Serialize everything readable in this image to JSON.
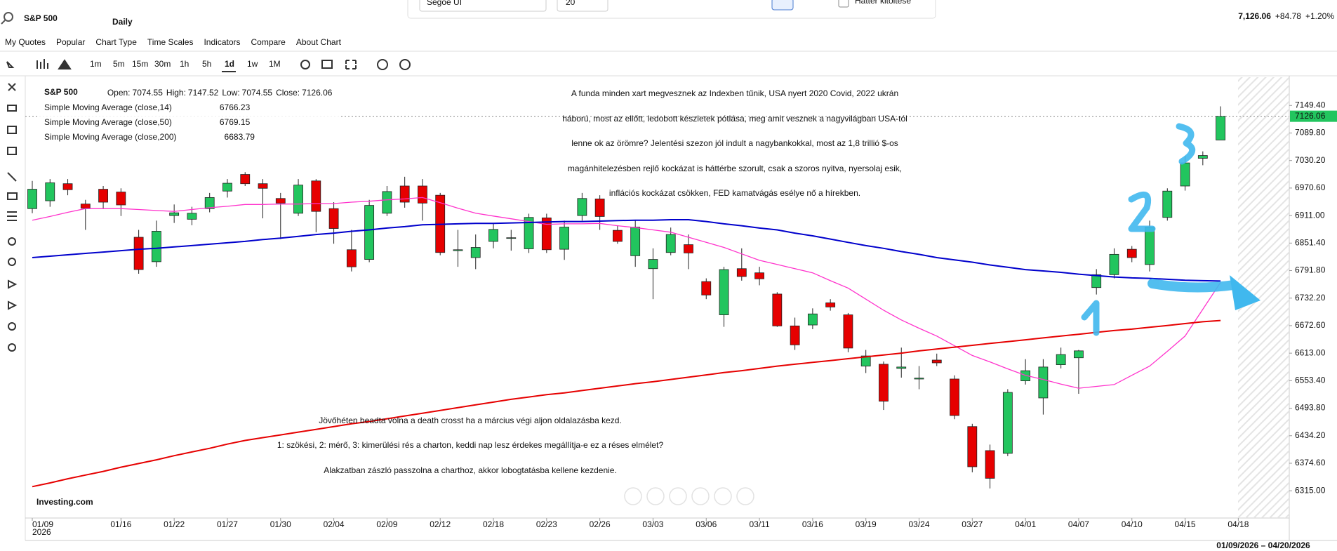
{
  "header": {
    "symbol": "S&P 500",
    "interval": "Daily",
    "price": "7,126.06",
    "change": "+84.78",
    "change_pct": "+1.20%"
  },
  "text_toolbar": {
    "font": "Segoe UI",
    "size": "20",
    "fill_label": "Háttér kitöltése"
  },
  "menu": [
    "My Quotes",
    "Popular",
    "Chart Type",
    "Time Scales",
    "Indicators",
    "Compare",
    "About Chart"
  ],
  "toolbar": {
    "intervals": [
      "1m",
      "5m",
      "15m",
      "30m",
      "1h",
      "5h",
      "1d",
      "1w",
      "1M"
    ]
  },
  "chart_data": {
    "type": "candlestick",
    "title": "S&P 500",
    "ohlc_labels": [
      "Open:",
      "High:",
      "Low:",
      "Close:"
    ],
    "categories": [
      "01/09",
      null,
      null,
      null,
      null,
      "01/16",
      null,
      null,
      "01/22",
      null,
      null,
      "01/27",
      null,
      null,
      "01/30",
      null,
      null,
      "02/04",
      null,
      null,
      "02/09",
      null,
      null,
      "02/12",
      null,
      null,
      "02/18",
      null,
      null,
      "02/23",
      null,
      null,
      "02/26",
      null,
      null,
      "03/03",
      null,
      null,
      "03/06",
      null,
      null,
      "03/11",
      null,
      null,
      "03/16",
      null,
      null,
      "03/19",
      null,
      null,
      "03/24",
      null,
      null,
      "03/27",
      null,
      null,
      "04/01",
      null,
      null,
      "04/07",
      null,
      null,
      "04/10",
      null,
      null,
      "04/15",
      null,
      null,
      "04/18"
    ],
    "year_label": "2026",
    "open": [
      6926,
      6943,
      6980,
      6936,
      6968,
      6962,
      6864,
      6811,
      6911,
      6903,
      6926,
      6964,
      7000,
      6980,
      6948,
      6916,
      6986,
      6926,
      6837,
      6816,
      6916,
      6975,
      6975,
      6955,
      6835,
      6820,
      6855,
      6862,
      6839,
      6906,
      6838,
      6911,
      6947,
      6879,
      6824,
      6796,
      6831,
      6848,
      6768,
      6696,
      6796,
      6787,
      6741,
      6672,
      6674,
      6722,
      6696,
      6585,
      6589,
      6580,
      6557,
      6598,
      6557,
      6454,
      6402,
      6396,
      6553,
      6516,
      6588,
      6603,
      6755,
      6783,
      6838,
      6805,
      6907,
      6975,
      7035,
      7074.55,
      null
    ],
    "high": [
      6986,
      6990,
      6990,
      6945,
      6975,
      6970,
      6880,
      6900,
      6935,
      6930,
      6960,
      6990,
      7005,
      6990,
      6960,
      6990,
      6990,
      6940,
      6880,
      6945,
      6975,
      6995,
      6990,
      6960,
      6880,
      6870,
      6895,
      6880,
      6915,
      6915,
      6900,
      6960,
      6955,
      6890,
      6900,
      6840,
      6885,
      6870,
      6775,
      6800,
      6840,
      6800,
      6745,
      6690,
      6710,
      6730,
      6700,
      6620,
      6595,
      6625,
      6585,
      6612,
      6565,
      6460,
      6415,
      6535,
      6600,
      6600,
      6625,
      6620,
      6795,
      6840,
      6845,
      6900,
      6970,
      7040,
      7050,
      7147.52,
      null
    ],
    "low": [
      6916,
      6930,
      6955,
      6880,
      6925,
      6910,
      6785,
      6800,
      6895,
      6890,
      6918,
      6950,
      6975,
      6905,
      6860,
      6910,
      6875,
      6850,
      6790,
      6810,
      6910,
      6928,
      6900,
      6825,
      6800,
      6795,
      6840,
      6835,
      6830,
      6830,
      6815,
      6900,
      6880,
      6850,
      6800,
      6730,
      6825,
      6795,
      6730,
      6670,
      6770,
      6760,
      6670,
      6620,
      6665,
      6705,
      6615,
      6570,
      6490,
      6560,
      6535,
      6585,
      6470,
      6355,
      6320,
      6390,
      6545,
      6480,
      6580,
      6525,
      6740,
      6775,
      6810,
      6790,
      6900,
      6965,
      7020,
      7074.55,
      null
    ],
    "close": [
      6968,
      6982,
      6967,
      6927,
      6940,
      6934,
      6794,
      6877,
      6917,
      6916,
      6950,
      6981,
      6980,
      6970,
      6938,
      6977,
      6920,
      6883,
      6800,
      6933,
      6963,
      6940,
      6938,
      6831,
      6837,
      6842,
      6881,
      6863,
      6907,
      6837,
      6886,
      6948,
      6909,
      6855,
      6886,
      6816,
      6870,
      6830,
      6739,
      6794,
      6779,
      6774,
      6672,
      6631,
      6698,
      6713,
      6624,
      6607,
      6509,
      6583,
      6559,
      6592,
      6478,
      6367,
      6342,
      6528,
      6575,
      6583,
      6610,
      6618,
      6783,
      6827,
      6820,
      6886,
      6964,
      7025,
      7041,
      7126.06,
      null
    ],
    "up_color": "#22c55e",
    "down_color": "#e60000",
    "series": [
      {
        "name": "Simple Moving Average (close,14)",
        "color": "#ff33cc",
        "values": [
          6901,
          6909,
          6918,
          6926,
          6926,
          6926,
          6924,
          6922,
          6920,
          6924,
          6928,
          6931,
          6935,
          6935,
          6936,
          6936,
          6937,
          6937,
          6940,
          6942,
          6945,
          6947,
          6950,
          6939,
          6927,
          6916,
          6910,
          6904,
          6898,
          6892,
          6893,
          6893,
          6894,
          6889,
          6885,
          6880,
          6875,
          6864,
          6853,
          6842,
          6828,
          6814,
          6805,
          6796,
          6787,
          6770,
          6754,
          6730,
          6706,
          6685,
          6667,
          6650,
          6629,
          6608,
          6594,
          6579,
          6565,
          6556,
          6546,
          6537,
          6541,
          6545,
          6565,
          6585,
          6617,
          6650,
          6708,
          6766.23,
          null
        ]
      },
      {
        "name": "Simple Moving Average (close,50)",
        "color": "#0000cc",
        "values": [
          6820,
          6823,
          6826,
          6829,
          6832,
          6835,
          6838,
          6840,
          6843,
          6846,
          6849,
          6852,
          6855,
          6859,
          6862,
          6866,
          6870,
          6873,
          6877,
          6880,
          6884,
          6887,
          6891,
          6892,
          6893,
          6894,
          6894,
          6895,
          6896,
          6897,
          6898,
          6898,
          6899,
          6900,
          6901,
          6901,
          6902,
          6902,
          6898,
          6893,
          6889,
          6884,
          6880,
          6873,
          6867,
          6860,
          6853,
          6846,
          6840,
          6833,
          6827,
          6820,
          6815,
          6810,
          6804,
          6799,
          6794,
          6791,
          6788,
          6784,
          6781,
          6778,
          6776,
          6775,
          6773,
          6771,
          6770,
          6769.15,
          null
        ]
      },
      {
        "name": "Simple Moving Average (close,200)",
        "color": "#e60000",
        "values": [
          6324,
          6332,
          6341,
          6349,
          6357,
          6366,
          6374,
          6382,
          6391,
          6399,
          6407,
          6416,
          6424,
          6430,
          6436,
          6442,
          6448,
          6454,
          6460,
          6465,
          6471,
          6477,
          6483,
          6489,
          6495,
          6501,
          6507,
          6513,
          6518,
          6523,
          6527,
          6532,
          6537,
          6542,
          6547,
          6551,
          6556,
          6561,
          6566,
          6571,
          6575,
          6580,
          6585,
          6589,
          6593,
          6597,
          6601,
          6605,
          6609,
          6613,
          6618,
          6622,
          6626,
          6630,
          6634,
          6638,
          6642,
          6646,
          6650,
          6654,
          6658,
          6662,
          6665,
          6669,
          6673,
          6677,
          6681,
          6683.79,
          null
        ]
      }
    ],
    "ylim": [
      6256,
      7203
    ],
    "yticks": [
      {
        "value": 6315,
        "label": "6315.00"
      },
      {
        "value": 6374.6,
        "label": "6374.60"
      },
      {
        "value": 6434.2,
        "label": "6434.20"
      },
      {
        "value": 6493.8,
        "label": "6493.80"
      },
      {
        "value": 6553.4,
        "label": "6553.40"
      },
      {
        "value": 6613,
        "label": "6613.00"
      },
      {
        "value": 6672.6,
        "label": "6672.60"
      },
      {
        "value": 6732.2,
        "label": "6732.20"
      },
      {
        "value": 6791.8,
        "label": "6791.80"
      },
      {
        "value": 6851.4,
        "label": "6851.40"
      },
      {
        "value": 6911,
        "label": "6911.00"
      },
      {
        "value": 6970.6,
        "label": "6970.60"
      },
      {
        "value": 7030.2,
        "label": "7030.20"
      },
      {
        "value": 7089.8,
        "label": "7089.80"
      },
      {
        "value": 7149.4,
        "label": "7149.40"
      }
    ],
    "grid": false
  },
  "annotations": {
    "black": [
      "A funda minden xart megvesznek az Indexben tűnik, USA nyert 2020 Covid, 2022 ukrán",
      "háború, most az ellőtt, ledobott készletek pótlása, meg amit vesznek a nagyvilágban USA-tól",
      "lenne ok az örömre? Jelentési szezon jól indult a nagybankokkal, most az 1,8 trillió $-os",
      "magánhitelezésben rejlő kockázat is háttérbe szorult, csak a szoros nyitva, nyersolaj esik,",
      "inflációs kockázat csökken, FED kamatvágás esélye nő a hírekben."
    ],
    "pink": [
      "Jövőhéten beadta volna a death crosst ha a március végi aljon oldalazásba kezd.",
      "1: szökési, 2: mérő, 3: kimerülési rés a charton, keddi nap lesz érdekes megállítja-e ez a réses elmélet?",
      "Alakzatban zászló passzolna a charthoz, akkor lobogtatásba kellene kezdenie."
    ]
  },
  "footer": {
    "logo": "Investing.com",
    "date_range": "01/09/2026 – 04/20/2026"
  }
}
